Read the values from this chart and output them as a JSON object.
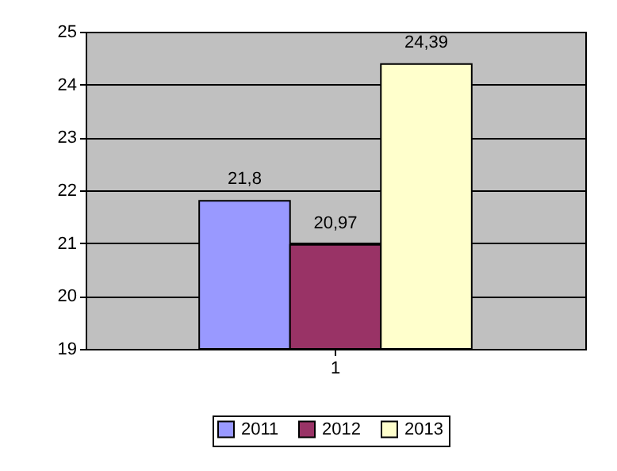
{
  "chart_data": {
    "type": "bar",
    "categories": [
      "1"
    ],
    "series": [
      {
        "name": "2011",
        "color": "#9999ff",
        "values": [
          21.8
        ],
        "value_labels": [
          "21,8"
        ]
      },
      {
        "name": "2012",
        "color": "#993366",
        "values": [
          20.97
        ],
        "value_labels": [
          "20,97"
        ]
      },
      {
        "name": "2013",
        "color": "#ffffcc",
        "values": [
          24.39
        ],
        "value_labels": [
          "24,39"
        ]
      }
    ],
    "ylim": [
      19,
      25
    ],
    "yticks": [
      19,
      20,
      21,
      22,
      23,
      24,
      25
    ],
    "grid": "y",
    "legend": "bottom"
  }
}
